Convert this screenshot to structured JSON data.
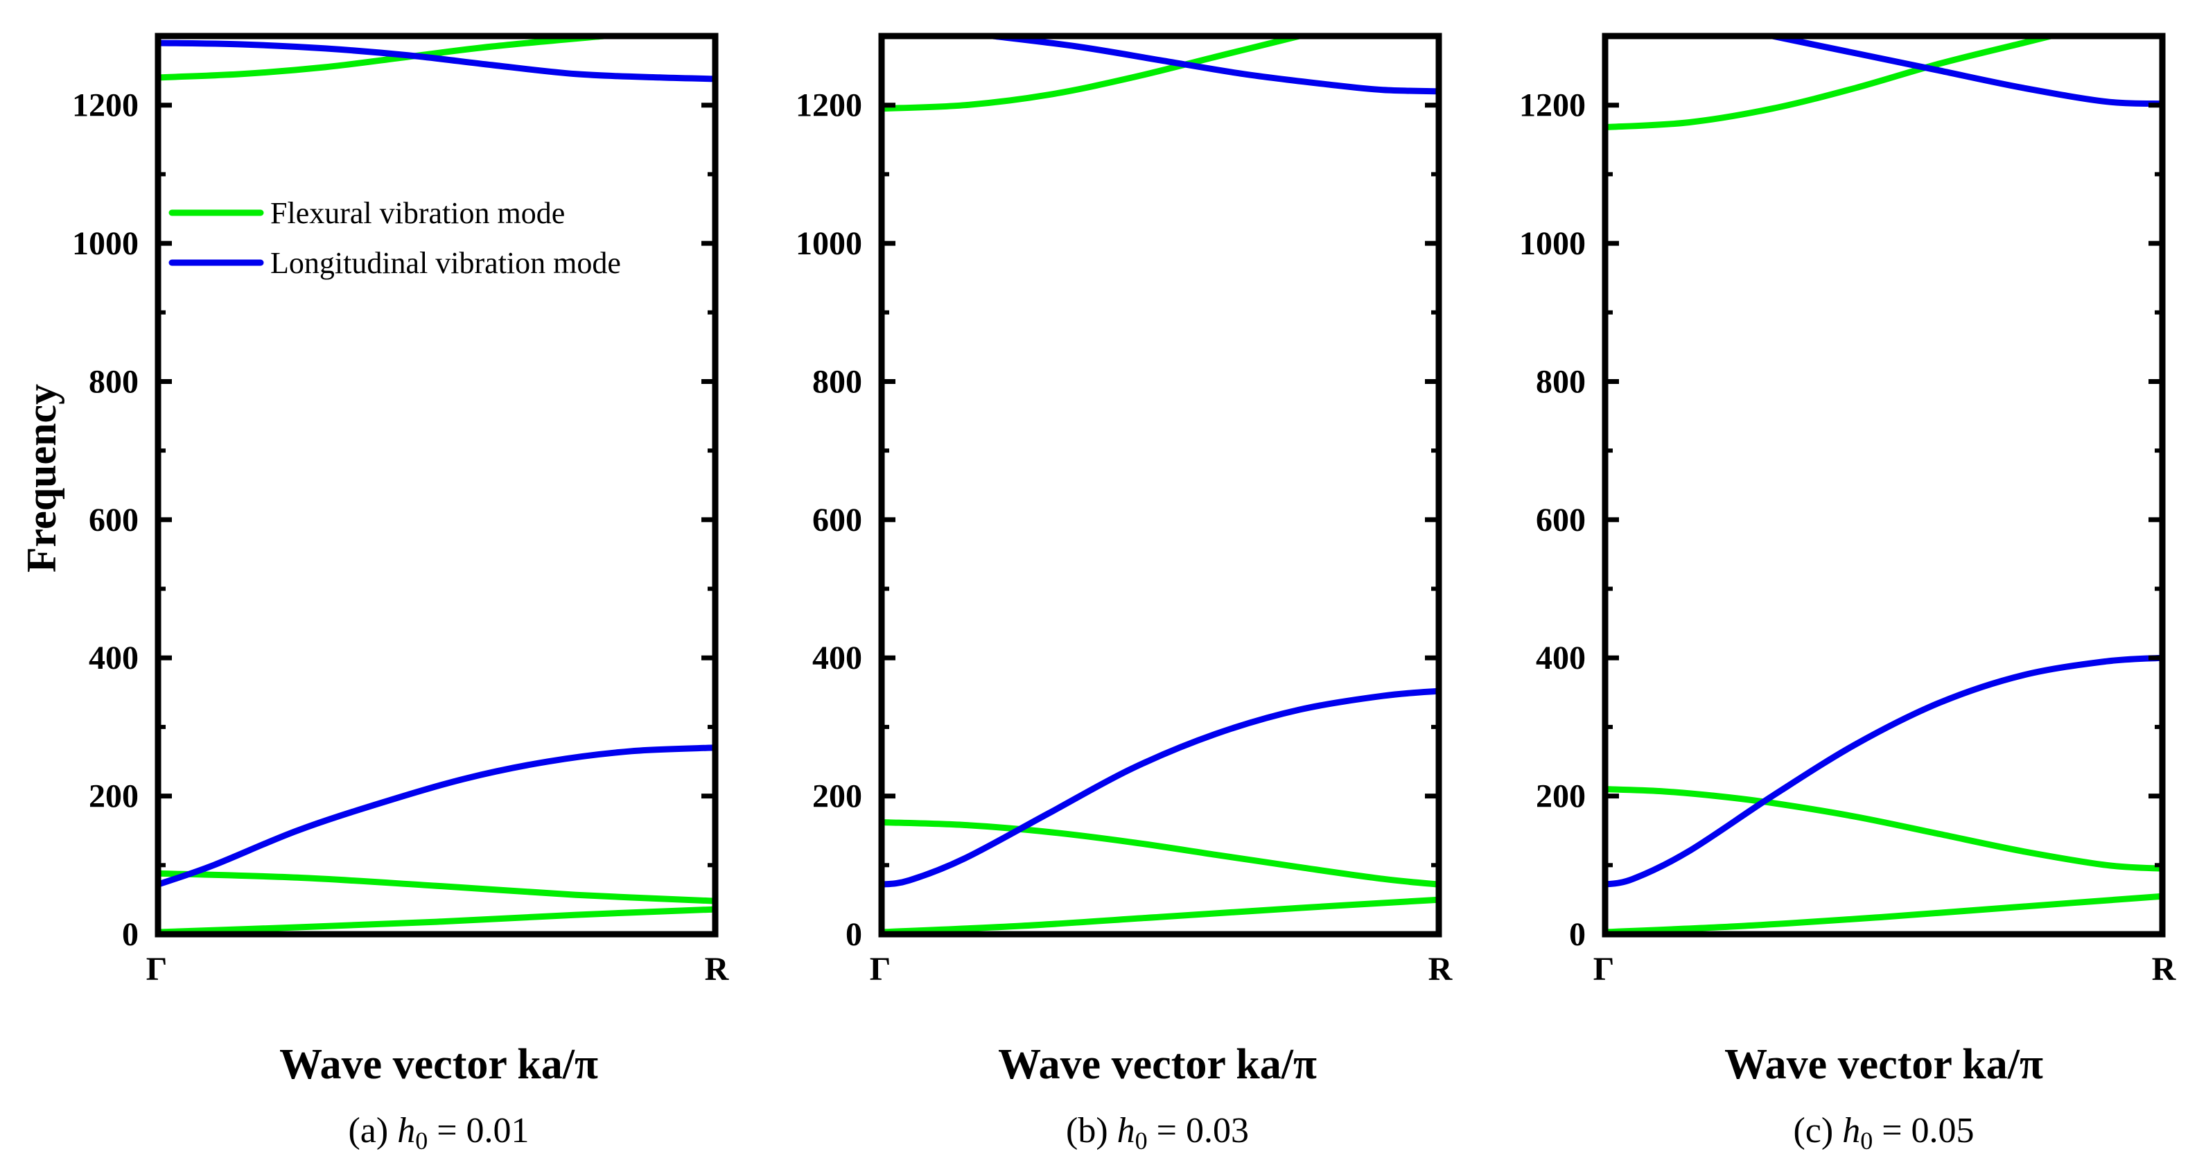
{
  "chart_data": [
    {
      "type": "line",
      "ylabel": "Frequency",
      "xlabel": "Wave vector ka/π",
      "caption_prefix": "(a)",
      "caption_var": "h",
      "caption_sub": "0",
      "caption_value": " = 0.01",
      "xticks": [
        "Γ",
        "R"
      ],
      "xlim": [
        0,
        1
      ],
      "ylim": [
        0,
        1300
      ],
      "yticks": [
        0,
        200,
        400,
        600,
        800,
        1000,
        1200
      ],
      "legend": [
        {
          "name": "Flexural vibration mode",
          "color": "#00ee00"
        },
        {
          "name": "Longitudinal vibration mode",
          "color": "#0000ee"
        }
      ],
      "series": [
        {
          "name": "Flexural vibration mode",
          "color": "#00ee00",
          "x": [
            0,
            0.25,
            0.5,
            0.75,
            1.0
          ],
          "y": [
            3,
            10,
            18,
            28,
            36
          ]
        },
        {
          "name": "Flexural vibration mode",
          "color": "#00ee00",
          "x": [
            0,
            0.25,
            0.5,
            0.75,
            1.0
          ],
          "y": [
            88,
            82,
            70,
            57,
            48
          ]
        },
        {
          "name": "Longitudinal vibration mode",
          "color": "#0000ee",
          "x": [
            0,
            0.1,
            0.25,
            0.4,
            0.55,
            0.7,
            0.85,
            1.0
          ],
          "y": [
            72,
            100,
            150,
            190,
            225,
            250,
            265,
            270
          ]
        },
        {
          "name": "Flexural vibration mode",
          "color": "#00ee00",
          "x": [
            0,
            0.15,
            0.3,
            0.45,
            0.6,
            0.8
          ],
          "y": [
            1240,
            1245,
            1255,
            1270,
            1285,
            1300
          ]
        },
        {
          "name": "Longitudinal vibration mode",
          "color": "#0000ee",
          "x": [
            0,
            0.15,
            0.3,
            0.45,
            0.6,
            0.75,
            0.9,
            1.0
          ],
          "y": [
            1290,
            1288,
            1282,
            1272,
            1258,
            1245,
            1240,
            1238
          ]
        }
      ]
    },
    {
      "type": "line",
      "ylabel": "",
      "xlabel": "Wave vector ka/π",
      "caption_prefix": "(b)",
      "caption_var": "h",
      "caption_sub": "0",
      "caption_value": " = 0.03",
      "xticks": [
        "Γ",
        "R"
      ],
      "xlim": [
        0,
        1
      ],
      "ylim": [
        0,
        1300
      ],
      "yticks": [
        0,
        200,
        400,
        600,
        800,
        1000,
        1200
      ],
      "series": [
        {
          "name": "Flexural vibration mode",
          "color": "#00ee00",
          "x": [
            0,
            0.25,
            0.5,
            0.75,
            1.0
          ],
          "y": [
            3,
            12,
            25,
            38,
            50
          ]
        },
        {
          "name": "Flexural vibration mode",
          "color": "#00ee00",
          "x": [
            0,
            0.15,
            0.3,
            0.45,
            0.6,
            0.75,
            0.9,
            1.0
          ],
          "y": [
            162,
            158,
            148,
            133,
            115,
            97,
            80,
            72
          ]
        },
        {
          "name": "Longitudinal vibration mode",
          "color": "#0000ee",
          "x": [
            0,
            0.05,
            0.15,
            0.3,
            0.45,
            0.6,
            0.75,
            0.9,
            1.0
          ],
          "y": [
            72,
            78,
            110,
            175,
            240,
            290,
            325,
            345,
            352
          ]
        },
        {
          "name": "Flexural vibration mode",
          "color": "#00ee00",
          "x": [
            0,
            0.15,
            0.3,
            0.45,
            0.6,
            0.75
          ],
          "y": [
            1195,
            1200,
            1215,
            1240,
            1270,
            1300
          ]
        },
        {
          "name": "Longitudinal vibration mode",
          "color": "#0000ee",
          "x": [
            0.2,
            0.35,
            0.5,
            0.65,
            0.8,
            0.9,
            1.0
          ],
          "y": [
            1300,
            1285,
            1265,
            1245,
            1230,
            1222,
            1220
          ]
        }
      ]
    },
    {
      "type": "line",
      "ylabel": "",
      "xlabel": "Wave vector ka/π",
      "caption_prefix": "(c)",
      "caption_var": "h",
      "caption_sub": "0",
      "caption_value": " = 0.05",
      "xticks": [
        "Γ",
        "R"
      ],
      "xlim": [
        0,
        1
      ],
      "ylim": [
        0,
        1300
      ],
      "yticks": [
        0,
        200,
        400,
        600,
        800,
        1000,
        1200
      ],
      "series": [
        {
          "name": "Flexural vibration mode",
          "color": "#00ee00",
          "x": [
            0,
            0.25,
            0.5,
            0.75,
            1.0
          ],
          "y": [
            3,
            12,
            25,
            40,
            55
          ]
        },
        {
          "name": "Flexural vibration mode",
          "color": "#00ee00",
          "x": [
            0,
            0.1,
            0.2,
            0.3,
            0.45,
            0.6,
            0.75,
            0.9,
            1.0
          ],
          "y": [
            210,
            207,
            200,
            190,
            170,
            145,
            120,
            100,
            95
          ]
        },
        {
          "name": "Longitudinal vibration mode",
          "color": "#0000ee",
          "x": [
            0,
            0.05,
            0.15,
            0.3,
            0.45,
            0.6,
            0.75,
            0.9,
            1.0
          ],
          "y": [
            72,
            80,
            120,
            200,
            275,
            335,
            375,
            395,
            400
          ]
        },
        {
          "name": "Flexural vibration mode",
          "color": "#00ee00",
          "x": [
            0,
            0.15,
            0.3,
            0.45,
            0.6,
            0.75,
            0.8
          ],
          "y": [
            1168,
            1175,
            1195,
            1225,
            1260,
            1290,
            1300
          ]
        },
        {
          "name": "Longitudinal vibration mode",
          "color": "#0000ee",
          "x": [
            0.3,
            0.45,
            0.6,
            0.75,
            0.9,
            1.0
          ],
          "y": [
            1300,
            1275,
            1250,
            1225,
            1205,
            1202
          ]
        }
      ]
    }
  ]
}
